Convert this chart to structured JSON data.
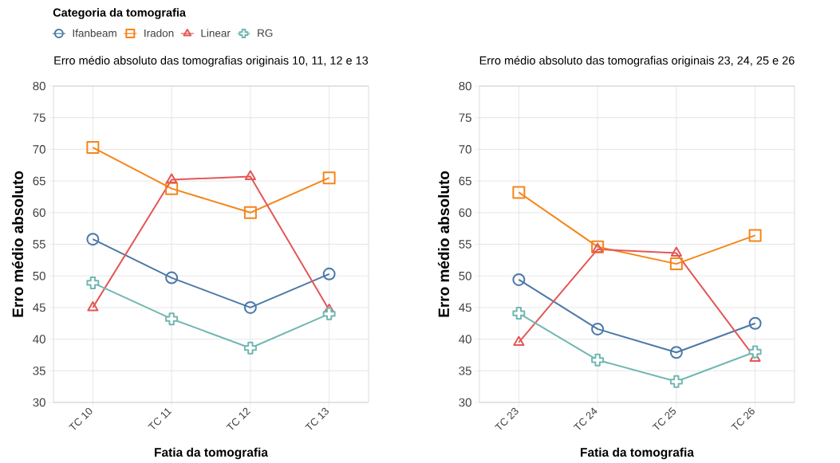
{
  "chart_data": [
    {
      "type": "line",
      "title": "Erro médio absoluto das tomografias originais 10, 11, 12 e 13",
      "xlabel": "Fatia da tomografia",
      "ylabel": "Erro médio absoluto",
      "legend_title": "Categoria da tomografia",
      "legend": "top left",
      "grid": true,
      "line_style": "solid",
      "categories": [
        "TC 10",
        "TC 11",
        "TC 12",
        "TC 13"
      ],
      "ylim": [
        30,
        80
      ],
      "yticks": [
        30,
        35,
        40,
        45,
        50,
        55,
        60,
        65,
        70,
        75,
        80
      ],
      "series": [
        {
          "name": "Ifanbeam",
          "color": "#4c78a8",
          "marker": "circle",
          "values": [
            55.8,
            49.7,
            45.0,
            50.3
          ]
        },
        {
          "name": "Iradon",
          "color": "#f58518",
          "marker": "square",
          "values": [
            70.3,
            63.8,
            60.0,
            65.5
          ]
        },
        {
          "name": "Linear",
          "color": "#e45756",
          "marker": "triangle",
          "values": [
            45.0,
            65.2,
            65.7,
            44.6
          ]
        },
        {
          "name": "RG",
          "color": "#72b7b2",
          "marker": "cross",
          "values": [
            48.9,
            43.2,
            38.6,
            44.0
          ]
        }
      ]
    },
    {
      "type": "line",
      "title": "Erro médio absoluto das tomografias originais 23, 24, 25 e 26",
      "xlabel": "Fatia da tomografia",
      "ylabel": "Erro médio absoluto",
      "grid": true,
      "line_style": "solid",
      "categories": [
        "TC 23",
        "TC 24",
        "TC 25",
        "TC 26"
      ],
      "ylim": [
        30,
        80
      ],
      "yticks": [
        30,
        35,
        40,
        45,
        50,
        55,
        60,
        65,
        70,
        75,
        80
      ],
      "series": [
        {
          "color": "#4c78a8",
          "marker": "circle",
          "values": [
            49.4,
            41.6,
            37.9,
            42.5
          ]
        },
        {
          "color": "#f58518",
          "marker": "square",
          "values": [
            63.2,
            54.6,
            51.9,
            56.4
          ]
        },
        {
          "color": "#e45756",
          "marker": "triangle",
          "values": [
            39.5,
            54.2,
            53.6,
            37.0
          ]
        },
        {
          "color": "#72b7b2",
          "marker": "cross",
          "values": [
            44.1,
            36.7,
            33.3,
            38.0
          ]
        }
      ]
    }
  ]
}
